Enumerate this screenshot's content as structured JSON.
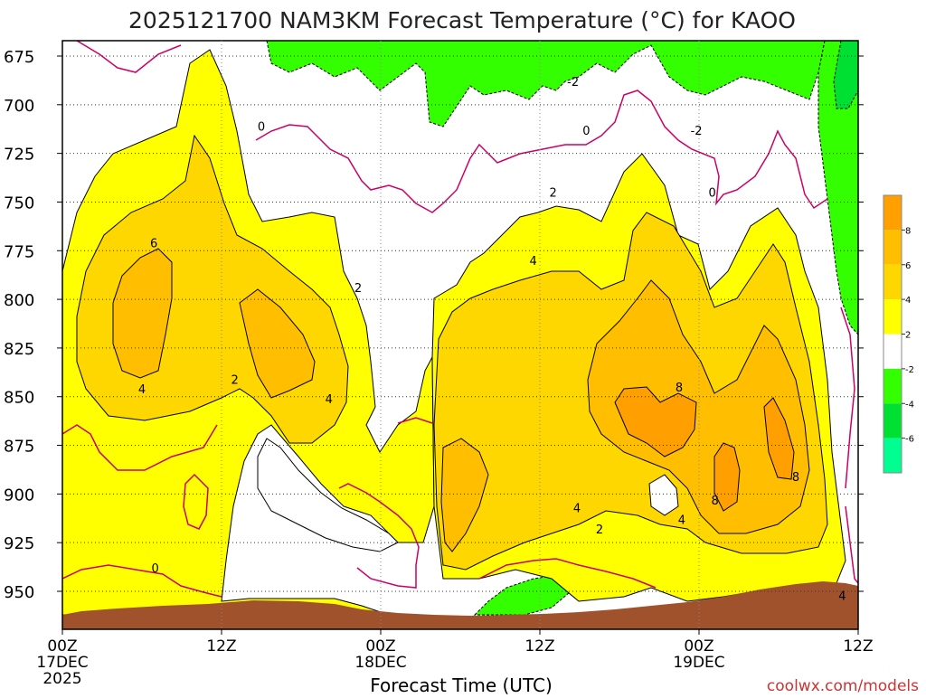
{
  "chart_data": {
    "type": "contour",
    "title": "2025121700 NAM3KM Forecast Temperature (°C) for KAOO",
    "xlabel": "Forecast Time (UTC)",
    "ylabel": "",
    "credit": "coolwx.com/models",
    "y_ticks": [
      "675",
      "700",
      "725",
      "750",
      "775",
      "800",
      "825",
      "850",
      "875",
      "900",
      "925",
      "950"
    ],
    "ylim": [
      962,
      668
    ],
    "x_ticks": [
      {
        "hour": 0,
        "label": "00Z",
        "sub": "17DEC",
        "sub2": "2025"
      },
      {
        "hour": 12,
        "label": "12Z",
        "sub": "",
        "sub2": ""
      },
      {
        "hour": 24,
        "label": "00Z",
        "sub": "18DEC",
        "sub2": ""
      },
      {
        "hour": 36,
        "label": "12Z",
        "sub": "",
        "sub2": ""
      },
      {
        "hour": 48,
        "label": "00Z",
        "sub": "19DEC",
        "sub2": ""
      },
      {
        "hour": 60,
        "label": "12Z",
        "sub": "",
        "sub2": ""
      }
    ],
    "xlim": [
      0,
      60
    ],
    "colorbar": {
      "ticks": [
        "8",
        "6",
        "4",
        "2",
        "-2",
        "-4",
        "-6"
      ],
      "bins": [
        {
          "range": "8 to 10",
          "color": "#ff9f00"
        },
        {
          "range": "6 to 8",
          "color": "#ffbf00"
        },
        {
          "range": "4 to 6",
          "color": "#ffd700"
        },
        {
          "range": "2 to 4",
          "color": "#ffff00"
        },
        {
          "range": "-2 to 2",
          "color": "#ffffff"
        },
        {
          "range": "-4 to -2",
          "color": "#33ff00"
        },
        {
          "range": "-6 to -4",
          "color": "#00e033"
        },
        {
          "range": "-8 to -6",
          "color": "#00ff90"
        }
      ]
    },
    "contour_labels": [
      {
        "text": "-2",
        "hour": 38.5,
        "p": 688
      },
      {
        "text": "0",
        "hour": 15.0,
        "p": 711
      },
      {
        "text": "0",
        "hour": 39.5,
        "p": 713
      },
      {
        "text": "-2",
        "hour": 47.8,
        "p": 713
      },
      {
        "text": "0",
        "hour": 49.0,
        "p": 745
      },
      {
        "text": "2",
        "hour": 37.0,
        "p": 745
      },
      {
        "text": "6",
        "hour": 6.9,
        "p": 771
      },
      {
        "text": "4",
        "hour": 35.5,
        "p": 780
      },
      {
        "text": "2",
        "hour": 22.3,
        "p": 794
      },
      {
        "text": "2",
        "hour": 13.0,
        "p": 841
      },
      {
        "text": "4",
        "hour": 6.0,
        "p": 846
      },
      {
        "text": "8",
        "hour": 46.5,
        "p": 845
      },
      {
        "text": "4",
        "hour": 20.1,
        "p": 851
      },
      {
        "text": "8",
        "hour": 55.3,
        "p": 891
      },
      {
        "text": "8",
        "hour": 49.2,
        "p": 903
      },
      {
        "text": "4",
        "hour": 38.8,
        "p": 907
      },
      {
        "text": "4",
        "hour": 46.7,
        "p": 913
      },
      {
        "text": "2",
        "hour": 40.5,
        "p": 918
      },
      {
        "text": "0",
        "hour": 7.0,
        "p": 938
      },
      {
        "text": "4",
        "hour": 58.8,
        "p": 952
      }
    ],
    "colors": {
      "terrain": "#a0522d",
      "zero_contour": "#cc0066",
      "line": "#000000"
    }
  }
}
